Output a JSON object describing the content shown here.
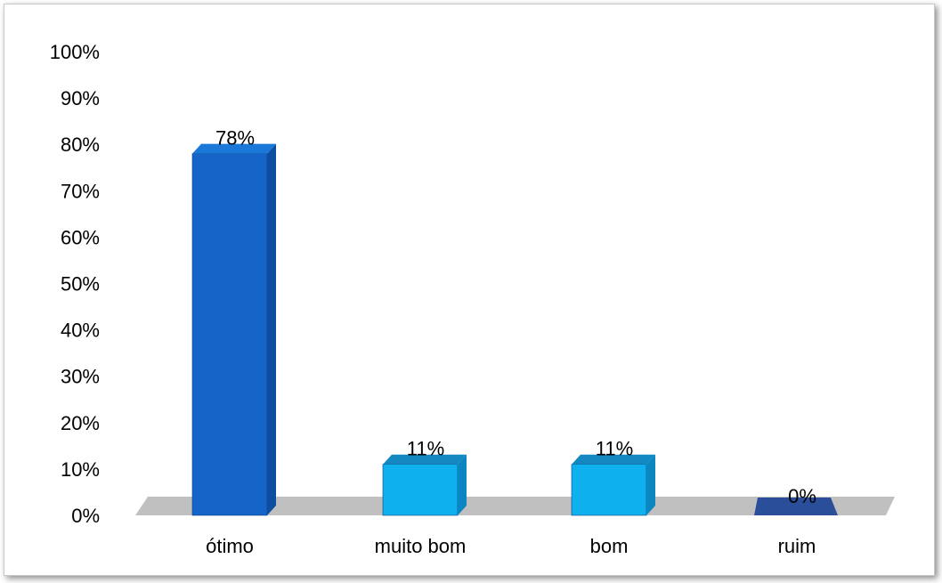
{
  "chart_data": {
    "type": "bar",
    "categories": [
      "ótimo",
      "muito bom",
      "bom",
      "ruim"
    ],
    "values": [
      78,
      11,
      11,
      0
    ],
    "data_labels": [
      "78%",
      "11%",
      "11%",
      "0%"
    ],
    "y_ticks": [
      "0%",
      "10%",
      "20%",
      "30%",
      "40%",
      "50%",
      "60%",
      "70%",
      "80%",
      "90%",
      "100%"
    ],
    "ylim": [
      0,
      100
    ],
    "title": "",
    "xlabel": "",
    "ylabel": "",
    "grid": false,
    "legend": "none",
    "colors": {
      "bar_main": [
        "#1565c8",
        "#0fb0ee",
        "#0fb0ee",
        "#2a4e9a"
      ],
      "bar_side": [
        "#0d4ea0",
        "#0b86c0",
        "#0b86c0",
        "#1f3c7a"
      ],
      "bar_top": [
        "#1a78d8",
        "#1488c0",
        "#1488c0",
        "#2f56a8"
      ],
      "floor": "#c0c0c0"
    }
  }
}
